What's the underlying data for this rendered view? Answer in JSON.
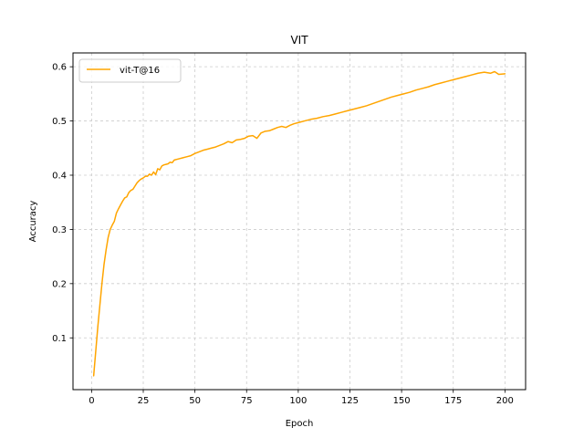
{
  "chart_data": {
    "type": "line",
    "title": "VIT",
    "xlabel": "Epoch",
    "ylabel": "Accuracy",
    "xlim": [
      -9,
      210
    ],
    "ylim": [
      0.0045,
      0.6255
    ],
    "xticks": [
      0,
      25,
      50,
      75,
      100,
      125,
      150,
      175,
      200
    ],
    "yticks": [
      0.1,
      0.2,
      0.3,
      0.4,
      0.5,
      0.6
    ],
    "ytick_labels": [
      "0.1",
      "0.2",
      "0.3",
      "0.4",
      "0.5",
      "0.6"
    ],
    "grid": true,
    "legend_position": "upper-left",
    "series": [
      {
        "name": "vit-T@16",
        "color": "#ffa500",
        "x": [
          1,
          2,
          3,
          4,
          5,
          6,
          7,
          8,
          9,
          10,
          11,
          12,
          13,
          14,
          15,
          16,
          17,
          18,
          19,
          20,
          21,
          22,
          23,
          24,
          25,
          26,
          27,
          28,
          29,
          30,
          31,
          32,
          33,
          34,
          35,
          36,
          37,
          38,
          39,
          40,
          42,
          44,
          46,
          48,
          50,
          52,
          54,
          56,
          58,
          60,
          62,
          64,
          66,
          68,
          70,
          72,
          74,
          76,
          78,
          80,
          82,
          84,
          86,
          88,
          90,
          92,
          94,
          96,
          98,
          100,
          103,
          106,
          109,
          112,
          115,
          118,
          121,
          124,
          127,
          130,
          133,
          136,
          139,
          142,
          145,
          148,
          151,
          154,
          157,
          160,
          163,
          166,
          169,
          172,
          175,
          178,
          181,
          184,
          187,
          190,
          193,
          195,
          197,
          200
        ],
        "y": [
          0.03,
          0.075,
          0.12,
          0.16,
          0.2,
          0.235,
          0.262,
          0.285,
          0.3,
          0.308,
          0.315,
          0.33,
          0.338,
          0.345,
          0.352,
          0.358,
          0.36,
          0.368,
          0.372,
          0.374,
          0.38,
          0.386,
          0.39,
          0.393,
          0.395,
          0.398,
          0.398,
          0.402,
          0.4,
          0.406,
          0.401,
          0.412,
          0.41,
          0.417,
          0.419,
          0.42,
          0.421,
          0.424,
          0.423,
          0.428,
          0.43,
          0.432,
          0.434,
          0.436,
          0.44,
          0.443,
          0.446,
          0.448,
          0.45,
          0.452,
          0.455,
          0.458,
          0.462,
          0.46,
          0.465,
          0.466,
          0.468,
          0.472,
          0.473,
          0.468,
          0.478,
          0.481,
          0.482,
          0.485,
          0.488,
          0.49,
          0.488,
          0.492,
          0.495,
          0.497,
          0.5,
          0.503,
          0.505,
          0.508,
          0.51,
          0.513,
          0.516,
          0.519,
          0.522,
          0.525,
          0.528,
          0.532,
          0.536,
          0.54,
          0.544,
          0.547,
          0.55,
          0.553,
          0.557,
          0.56,
          0.563,
          0.567,
          0.57,
          0.573,
          0.576,
          0.579,
          0.582,
          0.585,
          0.588,
          0.59,
          0.588,
          0.591,
          0.586,
          0.587
        ]
      }
    ]
  }
}
